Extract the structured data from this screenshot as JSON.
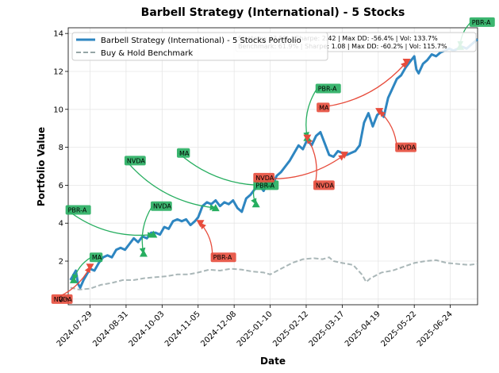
{
  "chart_data": {
    "type": "line",
    "title": "Barbell Strategy (International) - 5 Stocks",
    "xlabel": "Date",
    "ylabel": "Portfolio Value",
    "xlim": [
      "2024-07-09",
      "2025-07-19"
    ],
    "ylim": [
      -0.3,
      14.3
    ],
    "x_ticks": [
      "2024-07-29",
      "2024-08-31",
      "2024-10-03",
      "2024-11-05",
      "2024-12-08",
      "2025-01-10",
      "2025-02-12",
      "2025-03-17",
      "2025-04-19",
      "2025-05-22",
      "2025-06-24"
    ],
    "y_ticks": [
      0,
      2,
      4,
      6,
      8,
      10,
      12,
      14
    ],
    "grid": true,
    "legend_position": "top-left",
    "series": [
      {
        "name": "Barbell Strategy (International) - 5 Stocks Portfolio",
        "color": "#2e86c1",
        "style": "solid",
        "points": [
          [
            "2024-07-11",
            1.0
          ],
          [
            "2024-07-14",
            1.3
          ],
          [
            "2024-07-16",
            1.5
          ],
          [
            "2024-07-18",
            0.8
          ],
          [
            "2024-07-20",
            0.6
          ],
          [
            "2024-07-23",
            1.0
          ],
          [
            "2024-07-26",
            1.3
          ],
          [
            "2024-07-29",
            1.6
          ],
          [
            "2024-08-02",
            1.5
          ],
          [
            "2024-08-06",
            1.9
          ],
          [
            "2024-08-10",
            2.2
          ],
          [
            "2024-08-14",
            2.3
          ],
          [
            "2024-08-18",
            2.2
          ],
          [
            "2024-08-22",
            2.6
          ],
          [
            "2024-08-26",
            2.7
          ],
          [
            "2024-08-30",
            2.6
          ],
          [
            "2024-09-03",
            2.9
          ],
          [
            "2024-09-07",
            3.2
          ],
          [
            "2024-09-11",
            3.0
          ],
          [
            "2024-09-15",
            3.3
          ],
          [
            "2024-09-19",
            3.2
          ],
          [
            "2024-09-23",
            3.5
          ],
          [
            "2024-09-27",
            3.5
          ],
          [
            "2024-10-01",
            3.4
          ],
          [
            "2024-10-05",
            3.8
          ],
          [
            "2024-10-09",
            3.7
          ],
          [
            "2024-10-13",
            4.1
          ],
          [
            "2024-10-17",
            4.2
          ],
          [
            "2024-10-21",
            4.1
          ],
          [
            "2024-10-25",
            4.2
          ],
          [
            "2024-10-29",
            3.9
          ],
          [
            "2024-11-02",
            4.1
          ],
          [
            "2024-11-05",
            4.3
          ],
          [
            "2024-11-07",
            4.6
          ],
          [
            "2024-11-09",
            4.9
          ],
          [
            "2024-11-13",
            5.1
          ],
          [
            "2024-11-17",
            5.0
          ],
          [
            "2024-11-21",
            5.2
          ],
          [
            "2024-11-25",
            4.9
          ],
          [
            "2024-11-29",
            5.1
          ],
          [
            "2024-12-03",
            5.0
          ],
          [
            "2024-12-07",
            5.2
          ],
          [
            "2024-12-11",
            4.8
          ],
          [
            "2024-12-15",
            4.6
          ],
          [
            "2024-12-19",
            5.3
          ],
          [
            "2024-12-23",
            5.5
          ],
          [
            "2024-12-27",
            5.8
          ],
          [
            "2024-12-31",
            6.0
          ],
          [
            "2025-01-04",
            5.7
          ],
          [
            "2025-01-08",
            6.2
          ],
          [
            "2025-01-12",
            6.0
          ],
          [
            "2025-01-16",
            6.5
          ],
          [
            "2025-01-20",
            6.7
          ],
          [
            "2025-01-24",
            7.0
          ],
          [
            "2025-01-28",
            7.3
          ],
          [
            "2025-02-01",
            7.7
          ],
          [
            "2025-02-05",
            8.1
          ],
          [
            "2025-02-09",
            7.9
          ],
          [
            "2025-02-13",
            8.4
          ],
          [
            "2025-02-17",
            8.1
          ],
          [
            "2025-02-21",
            8.6
          ],
          [
            "2025-02-25",
            8.8
          ],
          [
            "2025-03-01",
            8.2
          ],
          [
            "2025-03-05",
            7.6
          ],
          [
            "2025-03-09",
            7.5
          ],
          [
            "2025-03-13",
            7.8
          ],
          [
            "2025-03-17",
            7.7
          ],
          [
            "2025-03-21",
            7.6
          ],
          [
            "2025-03-25",
            7.7
          ],
          [
            "2025-03-29",
            7.8
          ],
          [
            "2025-04-02",
            8.1
          ],
          [
            "2025-04-06",
            9.3
          ],
          [
            "2025-04-10",
            9.8
          ],
          [
            "2025-04-14",
            9.1
          ],
          [
            "2025-04-18",
            9.7
          ],
          [
            "2025-04-22",
            9.9
          ],
          [
            "2025-04-24",
            9.6
          ],
          [
            "2025-04-28",
            10.6
          ],
          [
            "2025-05-02",
            11.1
          ],
          [
            "2025-05-06",
            11.6
          ],
          [
            "2025-05-10",
            11.8
          ],
          [
            "2025-05-14",
            12.2
          ],
          [
            "2025-05-18",
            12.5
          ],
          [
            "2025-05-22",
            12.8
          ],
          [
            "2025-05-24",
            12.1
          ],
          [
            "2025-05-26",
            11.9
          ],
          [
            "2025-05-30",
            12.4
          ],
          [
            "2025-06-03",
            12.6
          ],
          [
            "2025-06-07",
            12.9
          ],
          [
            "2025-06-11",
            12.8
          ],
          [
            "2025-06-15",
            13.0
          ],
          [
            "2025-06-19",
            13.1
          ],
          [
            "2025-06-23",
            13.2
          ],
          [
            "2025-06-27",
            13.1
          ],
          [
            "2025-07-01",
            13.2
          ],
          [
            "2025-07-05",
            13.3
          ],
          [
            "2025-07-09",
            13.2
          ],
          [
            "2025-07-13",
            13.4
          ],
          [
            "2025-07-17",
            13.6
          ],
          [
            "2025-07-19",
            13.7
          ]
        ]
      },
      {
        "name": "Buy & Hold Benchmark",
        "color": "#95a5a6",
        "style": "dashed",
        "points": [
          [
            "2024-07-11",
            0.6
          ],
          [
            "2024-07-19",
            0.5
          ],
          [
            "2024-07-29",
            0.55
          ],
          [
            "2024-08-08",
            0.75
          ],
          [
            "2024-08-18",
            0.85
          ],
          [
            "2024-08-28",
            1.0
          ],
          [
            "2024-09-07",
            1.0
          ],
          [
            "2024-09-17",
            1.1
          ],
          [
            "2024-09-27",
            1.15
          ],
          [
            "2024-10-07",
            1.2
          ],
          [
            "2024-10-17",
            1.3
          ],
          [
            "2024-10-27",
            1.3
          ],
          [
            "2024-11-05",
            1.4
          ],
          [
            "2024-11-15",
            1.55
          ],
          [
            "2024-11-25",
            1.5
          ],
          [
            "2024-12-05",
            1.6
          ],
          [
            "2024-12-15",
            1.55
          ],
          [
            "2024-12-25",
            1.45
          ],
          [
            "2025-01-04",
            1.4
          ],
          [
            "2025-01-10",
            1.3
          ],
          [
            "2025-01-20",
            1.6
          ],
          [
            "2025-01-30",
            1.9
          ],
          [
            "2025-02-09",
            2.1
          ],
          [
            "2025-02-19",
            2.15
          ],
          [
            "2025-02-27",
            2.1
          ],
          [
            "2025-03-05",
            2.2
          ],
          [
            "2025-03-09",
            2.0
          ],
          [
            "2025-03-17",
            1.9
          ],
          [
            "2025-03-27",
            1.8
          ],
          [
            "2025-04-04",
            1.3
          ],
          [
            "2025-04-08",
            0.9
          ],
          [
            "2025-04-12",
            1.1
          ],
          [
            "2025-04-22",
            1.4
          ],
          [
            "2025-05-02",
            1.5
          ],
          [
            "2025-05-12",
            1.7
          ],
          [
            "2025-05-22",
            1.9
          ],
          [
            "2025-06-01",
            2.0
          ],
          [
            "2025-06-11",
            2.05
          ],
          [
            "2025-06-21",
            1.9
          ],
          [
            "2025-07-01",
            1.85
          ],
          [
            "2025-07-11",
            1.8
          ],
          [
            "2025-07-19",
            1.85
          ]
        ]
      }
    ],
    "stats_text": [
      "Strategy: 93.5% | Sharpe: 2.42 | Max DD: -56.4% | Vol: 133.7%",
      "Benchmark: 61.9% | Sharpe: 1.08 | Max DD: -60.2% | Vol: 115.7%"
    ],
    "buy_color": "#27ae60",
    "sell_color": "#e74c3c",
    "trades": [
      {
        "label": "NVDA",
        "type": "sell",
        "x": "2024-07-29",
        "y": 1.7,
        "lx": "2024-06-25",
        "ly": 0.0
      },
      {
        "label": "MA",
        "type": "buy",
        "x": "2024-07-14",
        "y": 1.0,
        "lx": "2024-07-30",
        "ly": 2.2
      },
      {
        "label": "PBR-A",
        "type": "buy",
        "x": "2024-09-25",
        "y": 3.4,
        "lx": "2024-07-08",
        "ly": 4.7
      },
      {
        "label": "NVDA",
        "type": "buy",
        "x": "2024-09-16",
        "y": 2.4,
        "lx": "2024-09-24",
        "ly": 4.9
      },
      {
        "label": "NVDA",
        "type": "buy",
        "x": "2024-11-21",
        "y": 4.8,
        "lx": "2024-08-31",
        "ly": 7.3
      },
      {
        "label": "MA",
        "type": "buy",
        "x": "2025-01-10",
        "y": 6.0,
        "lx": "2024-10-18",
        "ly": 7.7
      },
      {
        "label": "PBR-A",
        "type": "sell",
        "x": "2024-11-07",
        "y": 4.0,
        "lx": "2024-11-18",
        "ly": 2.2
      },
      {
        "label": "PBR-A",
        "type": "buy",
        "x": "2024-12-28",
        "y": 5.0,
        "lx": "2024-12-27",
        "ly": 6.0
      },
      {
        "label": "NVDA",
        "type": "sell",
        "x": "2025-03-19",
        "y": 7.6,
        "lx": "2024-12-27",
        "ly": 6.4
      },
      {
        "label": "PBR-A",
        "type": "buy",
        "x": "2025-02-13",
        "y": 8.5,
        "lx": "2025-02-22",
        "ly": 11.1
      },
      {
        "label": "NVDA",
        "type": "sell",
        "x": "2025-02-13",
        "y": 8.5,
        "lx": "2025-02-20",
        "ly": 6.0
      },
      {
        "label": "MA",
        "type": "sell",
        "x": "2025-05-15",
        "y": 12.5,
        "lx": "2025-02-23",
        "ly": 10.1
      },
      {
        "label": "NVDA",
        "type": "sell",
        "x": "2025-04-20",
        "y": 9.9,
        "lx": "2025-05-06",
        "ly": 8.0
      },
      {
        "label": "PBR-A",
        "type": "buy",
        "x": "2025-07-03",
        "y": 13.3,
        "lx": "2025-07-13",
        "ly": 14.6
      }
    ]
  }
}
